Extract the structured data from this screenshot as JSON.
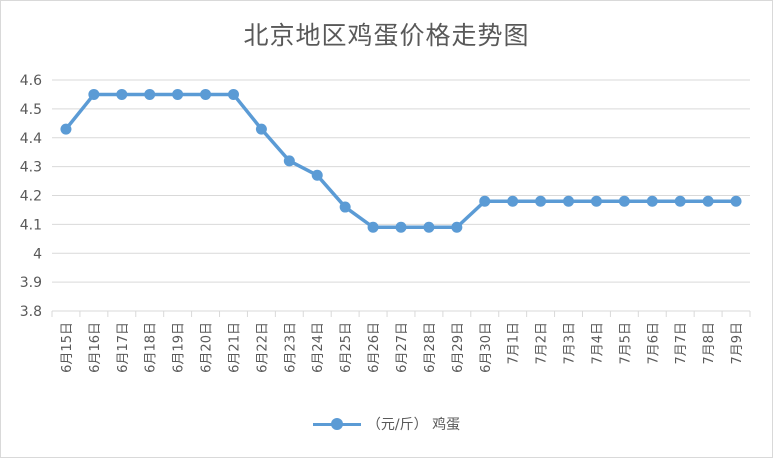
{
  "chart_data": {
    "type": "line",
    "title": "北京地区鸡蛋价格走势图",
    "categories": [
      "6月15日",
      "6月16日",
      "6月17日",
      "6月18日",
      "6月19日",
      "6月20日",
      "6月21日",
      "6月22日",
      "6月23日",
      "6月24日",
      "6月25日",
      "6月26日",
      "6月27日",
      "6月28日",
      "6月29日",
      "6月30日",
      "7月1日",
      "7月2日",
      "7月3日",
      "7月4日",
      "7月5日",
      "7月6日",
      "7月7日",
      "7月8日",
      "7月9日"
    ],
    "series": [
      {
        "name": "（元/斤） 鸡蛋",
        "values": [
          4.43,
          4.55,
          4.55,
          4.55,
          4.55,
          4.55,
          4.55,
          4.43,
          4.32,
          4.27,
          4.16,
          4.09,
          4.09,
          4.09,
          4.09,
          4.18,
          4.18,
          4.18,
          4.18,
          4.18,
          4.18,
          4.18,
          4.18,
          4.18,
          4.18
        ]
      }
    ],
    "ylim": [
      3.8,
      4.6
    ],
    "yticks": [
      "3.8",
      "3.9",
      "4",
      "4.1",
      "4.2",
      "4.3",
      "4.4",
      "4.5",
      "4.6"
    ],
    "grid": true,
    "legend_position": "bottom",
    "colors": {
      "series": "#5b9bd5",
      "grid": "#d9d9d9",
      "text": "#595959"
    }
  }
}
